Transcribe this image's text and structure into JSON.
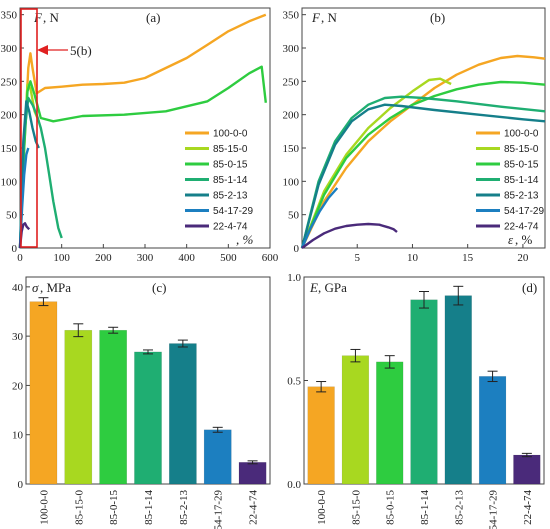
{
  "panels": {
    "a": {
      "label": "(a)",
      "ylabel_sym": "F",
      "ylabel_unit": ", N",
      "xlabel_unit": ", %",
      "annotation": "5(b)",
      "xlim": [
        0,
        600
      ],
      "ylim": [
        0,
        360
      ],
      "xticks": [
        "0",
        "100",
        "200",
        "300",
        "400",
        "500",
        "600"
      ],
      "yticks": [
        "0",
        "50",
        "100",
        "150",
        "200",
        "250",
        "300",
        "350"
      ]
    },
    "b": {
      "label": "(b)",
      "ylabel_sym": "F",
      "ylabel_unit": ", N",
      "xlabel_sym": "ε",
      "xlabel_unit": ", %",
      "xlim": [
        0,
        22
      ],
      "ylim": [
        0,
        360
      ],
      "xticks": [
        "5",
        "10",
        "15",
        "20"
      ],
      "yticks": [
        "0",
        "50",
        "100",
        "150",
        "200",
        "250",
        "300",
        "350"
      ]
    },
    "c": {
      "label": "(c)",
      "ylabel_sym": "σ",
      "ylabel_unit": ", MPa",
      "ylim": [
        0,
        42
      ],
      "yticks": [
        "0",
        "10",
        "20",
        "30",
        "40"
      ]
    },
    "d": {
      "label": "(d)",
      "ylabel_sym": "E",
      "ylabel_unit": ", GPa",
      "ylim": [
        0,
        1.0
      ],
      "yticks": [
        "0.0",
        "0.5",
        "1.0"
      ]
    }
  },
  "legend": [
    "100-0-0",
    "85-15-0",
    "85-0-15",
    "85-1-14",
    "85-2-13",
    "54-17-29",
    "22-4-74"
  ],
  "colors": [
    "#f5a623",
    "#a8d820",
    "#2ecc40",
    "#1fae72",
    "#157f8a",
    "#1c7fc0",
    "#4a2a7a"
  ],
  "chart_data": [
    {
      "type": "line",
      "series": [
        {
          "name": "100-0-0",
          "x": [
            0,
            10,
            20,
            25,
            30,
            40,
            60,
            100,
            150,
            200,
            250,
            300,
            350,
            400,
            450,
            500,
            550,
            590
          ],
          "y": [
            0,
            150,
            270,
            292,
            270,
            232,
            240,
            242,
            245,
            246,
            248,
            255,
            270,
            285,
            305,
            325,
            340,
            350
          ]
        },
        {
          "name": "85-15-0",
          "x": [
            0,
            10,
            18,
            25,
            35,
            45
          ],
          "y": [
            0,
            160,
            245,
            240,
            205,
            190
          ]
        },
        {
          "name": "85-0-15",
          "x": [
            0,
            10,
            18,
            25,
            35,
            50,
            80,
            150,
            250,
            350,
            450,
            500,
            550,
            580,
            590
          ],
          "y": [
            0,
            150,
            235,
            250,
            230,
            195,
            190,
            198,
            200,
            205,
            220,
            240,
            262,
            272,
            218
          ]
        },
        {
          "name": "85-1-14",
          "x": [
            0,
            10,
            20,
            30,
            40,
            50,
            60,
            70,
            80,
            92,
            100
          ],
          "y": [
            0,
            170,
            225,
            215,
            200,
            180,
            150,
            110,
            70,
            30,
            15
          ]
        },
        {
          "name": "85-2-13",
          "x": [
            0,
            8,
            15,
            22,
            30,
            38,
            45
          ],
          "y": [
            0,
            160,
            220,
            205,
            180,
            160,
            150
          ]
        },
        {
          "name": "54-17-29",
          "x": [
            0,
            5,
            10,
            15,
            20
          ],
          "y": [
            0,
            60,
            110,
            140,
            150
          ]
        },
        {
          "name": "22-4-74",
          "x": [
            0,
            4,
            8,
            12,
            16,
            22
          ],
          "y": [
            0,
            25,
            35,
            37,
            32,
            28
          ]
        }
      ]
    },
    {
      "type": "line",
      "series": [
        {
          "name": "100-0-0",
          "x": [
            0,
            2,
            4,
            6,
            8,
            10,
            12,
            14,
            16,
            18,
            19.5,
            21,
            22
          ],
          "y": [
            0,
            70,
            120,
            160,
            190,
            215,
            240,
            260,
            275,
            285,
            288,
            286,
            284
          ]
        },
        {
          "name": "85-15-0",
          "x": [
            0,
            2,
            4,
            6,
            8,
            10,
            11.5,
            12.5,
            13.5
          ],
          "y": [
            0,
            85,
            140,
            180,
            210,
            235,
            252,
            254,
            246
          ]
        },
        {
          "name": "85-0-15",
          "x": [
            0,
            2,
            4,
            6,
            8,
            10,
            12,
            14,
            16,
            18,
            20,
            22
          ],
          "y": [
            0,
            80,
            135,
            170,
            195,
            215,
            228,
            238,
            245,
            249,
            248,
            245
          ]
        },
        {
          "name": "85-1-14",
          "x": [
            0,
            1.5,
            3,
            4.5,
            6,
            7.5,
            9,
            11,
            14,
            18,
            22
          ],
          "y": [
            0,
            100,
            160,
            195,
            215,
            225,
            227,
            225,
            220,
            212,
            205
          ]
        },
        {
          "name": "85-2-13",
          "x": [
            0,
            1.5,
            3,
            4.5,
            6,
            7.5,
            9,
            12,
            16,
            20,
            22
          ],
          "y": [
            0,
            95,
            155,
            190,
            208,
            215,
            213,
            207,
            200,
            193,
            190
          ]
        },
        {
          "name": "54-17-29",
          "x": [
            0,
            0.8,
            1.6,
            2.4,
            3.2
          ],
          "y": [
            0,
            30,
            55,
            75,
            90
          ]
        },
        {
          "name": "22-4-74",
          "x": [
            0,
            1,
            2,
            3,
            4,
            5,
            6,
            7,
            7.8,
            8.3,
            8.6
          ],
          "y": [
            0,
            12,
            22,
            29,
            33,
            35,
            36,
            35,
            31,
            28,
            24
          ]
        }
      ]
    },
    {
      "type": "bar",
      "categories": [
        "100-0-0",
        "85-15-0",
        "85-0-15",
        "85-1-14",
        "85-2-13",
        "54-17-29",
        "22-4-74"
      ],
      "values": [
        37.0,
        31.2,
        31.2,
        26.8,
        28.5,
        11.0,
        4.4
      ],
      "errors": [
        0.8,
        1.3,
        0.6,
        0.4,
        0.7,
        0.5,
        0.3
      ]
    },
    {
      "type": "bar",
      "categories": [
        "100-0-0",
        "85-15-0",
        "85-0-15",
        "85-1-14",
        "85-2-13",
        "54-17-29",
        "22-4-74"
      ],
      "values": [
        0.47,
        0.62,
        0.59,
        0.89,
        0.91,
        0.52,
        0.14
      ],
      "errors": [
        0.025,
        0.03,
        0.03,
        0.04,
        0.045,
        0.025,
        0.008
      ]
    }
  ]
}
